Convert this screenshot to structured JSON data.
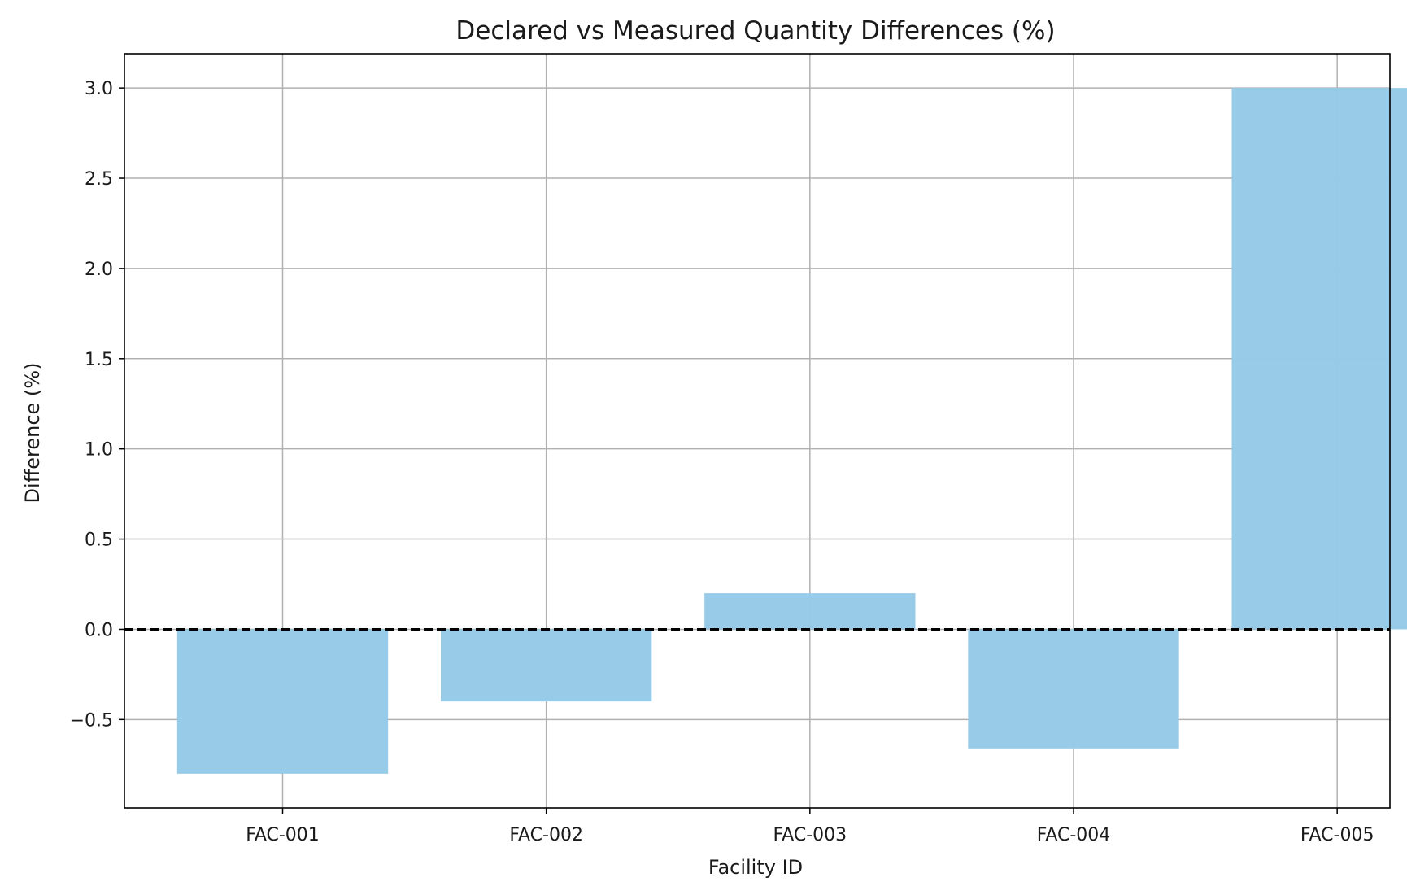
{
  "chart_data": {
    "type": "bar",
    "title": "Declared vs Measured Quantity Differences (%)",
    "xlabel": "Facility ID",
    "ylabel": "Difference (%)",
    "categories": [
      "FAC-001",
      "FAC-002",
      "FAC-003",
      "FAC-004",
      "FAC-005"
    ],
    "values": [
      -0.8,
      -0.4,
      0.2,
      -0.66,
      3.0
    ],
    "ylim": [
      -0.99,
      3.19
    ],
    "yticks": [
      -0.5,
      0.0,
      0.5,
      1.0,
      1.5,
      2.0,
      2.5,
      3.0
    ],
    "ytick_labels": [
      "−0.5",
      "0.0",
      "0.5",
      "1.0",
      "1.5",
      "2.0",
      "2.5",
      "3.0"
    ],
    "grid": true,
    "reference_line": {
      "value": 0,
      "style": "dashed",
      "color": "#000000"
    },
    "bar_color": "#97cae8"
  }
}
